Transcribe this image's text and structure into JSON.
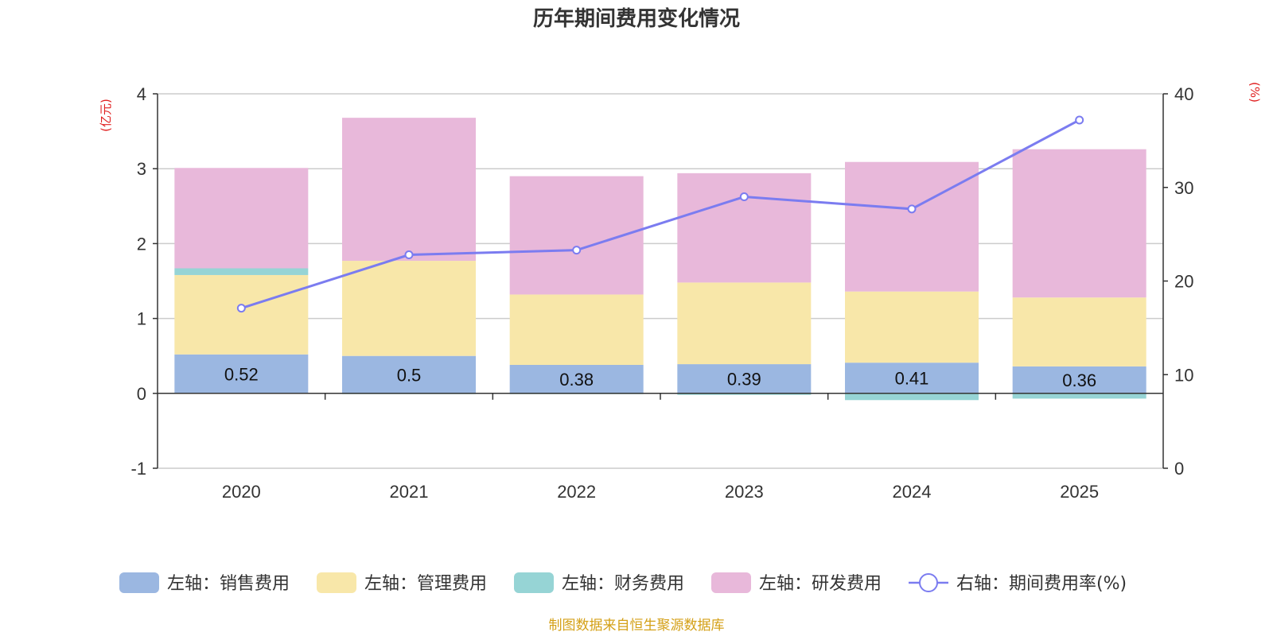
{
  "chart_data": {
    "type": "bar",
    "title": "历年期间费用变化情况",
    "categories": [
      "2020",
      "2021",
      "2022",
      "2023",
      "2024",
      "2025"
    ],
    "left_axis": {
      "unit_label": "(亿元)",
      "ylim": [
        -1,
        4
      ],
      "ticks": [
        "4",
        "3",
        "2",
        "1",
        "0",
        "-1"
      ]
    },
    "right_axis": {
      "unit_label": "(%)",
      "ylim": [
        0,
        40
      ],
      "ticks": [
        "40",
        "30",
        "20",
        "10",
        "0"
      ]
    },
    "series": [
      {
        "name": "左轴：销售费用",
        "axis": "left",
        "stack": true,
        "color": "#9bb7e1",
        "values": [
          0.52,
          0.5,
          0.38,
          0.39,
          0.41,
          0.36
        ],
        "labels": [
          "0.52",
          "0.5",
          "0.38",
          "0.39",
          "0.41",
          "0.36"
        ]
      },
      {
        "name": "左轴：管理费用",
        "axis": "left",
        "stack": true,
        "color": "#f8e7a9",
        "values": [
          1.06,
          1.27,
          0.94,
          1.09,
          0.95,
          0.92
        ]
      },
      {
        "name": "左轴：财务费用",
        "axis": "left",
        "stack": true,
        "color": "#96d4d5",
        "values": [
          0.09,
          -0.01,
          -0.01,
          -0.02,
          -0.09,
          -0.07
        ]
      },
      {
        "name": "左轴：研发费用",
        "axis": "left",
        "stack": true,
        "color": "#e8b8da",
        "values": [
          1.34,
          1.91,
          1.58,
          1.46,
          1.73,
          1.98
        ]
      },
      {
        "name": "右轴：期间费用率(%)",
        "axis": "right",
        "type": "line",
        "color": "#7b7cf0",
        "values": [
          17.1,
          22.8,
          23.3,
          29.0,
          27.7,
          37.2
        ]
      }
    ],
    "legend_position": "bottom",
    "grid": true
  },
  "source_note": "制图数据来自恒生聚源数据库"
}
